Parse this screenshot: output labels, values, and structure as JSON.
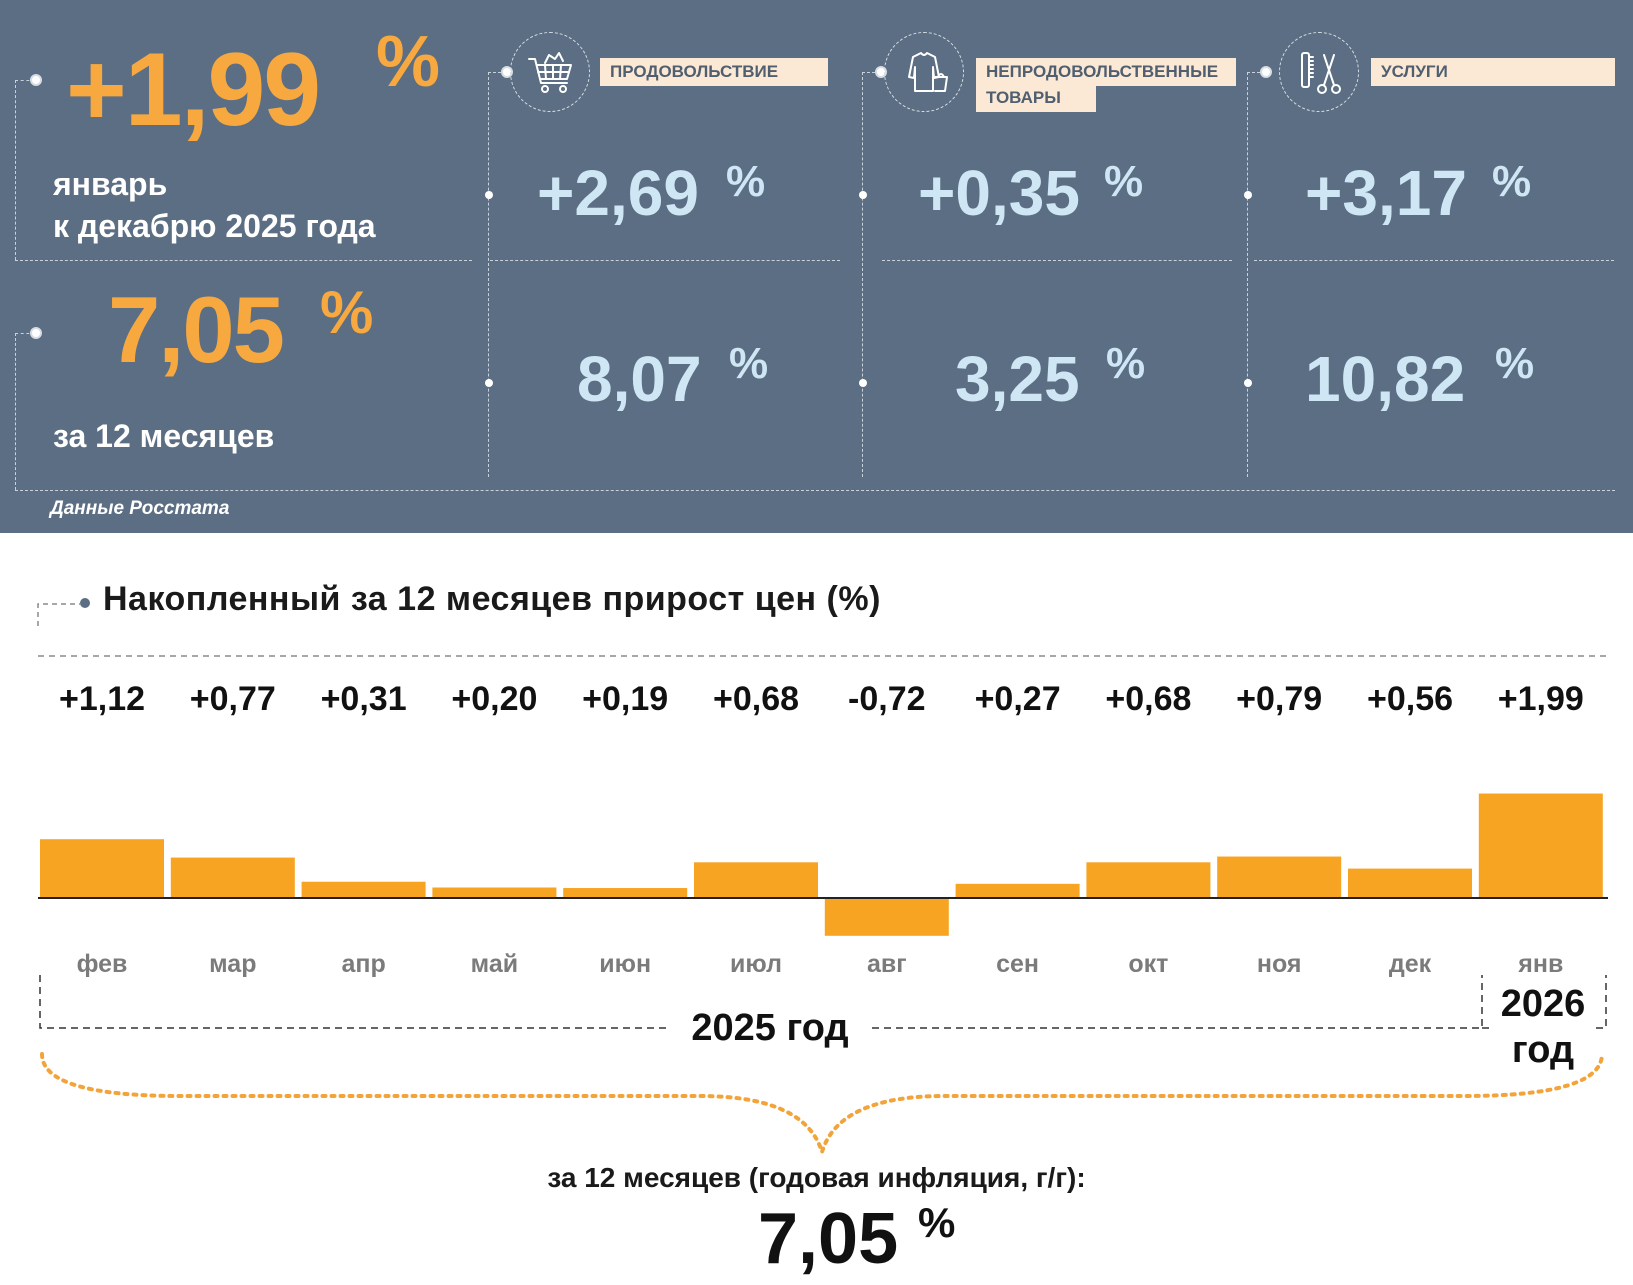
{
  "headline": {
    "month_change": "+1,99",
    "month_pct": "%",
    "month_label_1": "январь",
    "month_label_2": "к декабрю 2025 года",
    "annual_value": "7,05",
    "annual_pct": "%",
    "annual_label": "за 12 месяцев",
    "source": "Данные Росстата"
  },
  "categories": [
    {
      "name": "ПРОДОВОЛЬСТВИЕ",
      "icon": "shopping-cart-icon",
      "month": "+2,69",
      "annual": "8,07",
      "pct": "%"
    },
    {
      "name": "НЕПРОДОВОЛЬСТВЕННЫЕ ТОВАРЫ",
      "name_line1": "НЕПРОДОВОЛЬСТВЕННЫЕ",
      "name_line2": "ТОВАРЫ",
      "icon": "clothing-icon",
      "month": "+0,35",
      "annual": "3,25",
      "pct": "%"
    },
    {
      "name": "УСЛУГИ",
      "icon": "scissors-comb-icon",
      "month": "+3,17",
      "annual": "10,82",
      "pct": "%"
    }
  ],
  "chart_data": {
    "type": "bar",
    "title": "Накопленный за 12 месяцев прирост цен (%)",
    "categories": [
      "фев",
      "мар",
      "апр",
      "май",
      "июн",
      "июл",
      "авг",
      "сен",
      "окт",
      "ноя",
      "дек",
      "янв"
    ],
    "values": [
      1.12,
      0.77,
      0.31,
      0.2,
      0.19,
      0.68,
      -0.72,
      0.27,
      0.68,
      0.79,
      0.56,
      1.99
    ],
    "value_labels": [
      "+1,12",
      "+0,77",
      "+0,31",
      "+0,20",
      "+0,19",
      "+0,68",
      "-0,72",
      "+0,27",
      "+0,68",
      "+0,79",
      "+0,56",
      "+1,99"
    ],
    "year_groups": [
      {
        "label": "2025 год",
        "from": "фев",
        "to": "дек"
      },
      {
        "label": "2026 год",
        "label_line1": "2026",
        "label_line2": "год",
        "from": "янв",
        "to": "янв"
      }
    ],
    "bar_color": "#f7a423",
    "summary_label": "за 12 месяцев (годовая инфляция, г/г):",
    "summary_value": "7,05",
    "summary_pct": "%"
  },
  "colors": {
    "panel_bg": "#5b6e83",
    "accent_orange": "#f7a940",
    "light_blue": "#cfe7f5",
    "label_bg": "#fbe9d6"
  }
}
